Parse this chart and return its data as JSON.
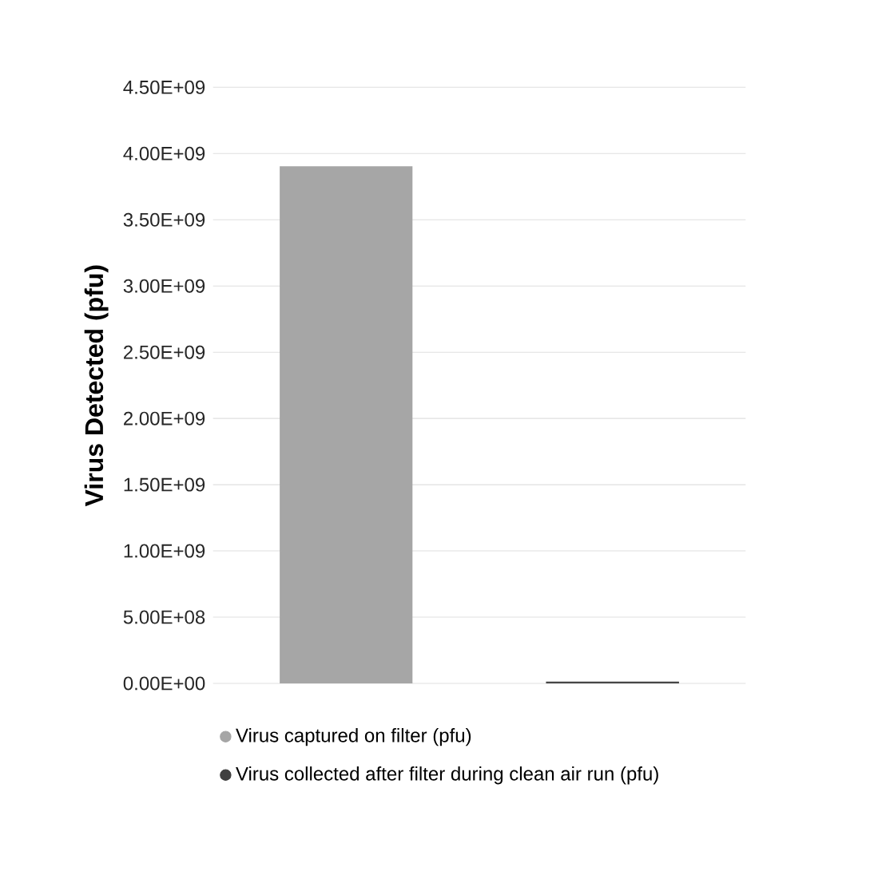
{
  "chart_data": {
    "type": "bar",
    "ylabel": "**Virus Detected (pfu)**",
    "categories": [
      null,
      null
    ],
    "series": [
      {
        "name": "Virus captured on filter (pfu)",
        "color": "#a6a6a6",
        "values": [
          3900000000,
          null
        ]
      },
      {
        "name": "Virus collected after filter during clean air run (pfu)",
        "color": "#404040",
        "values": [
          null,
          10000000
        ]
      }
    ],
    "ylim": [
      0,
      4500000000
    ],
    "yticks": [
      {
        "value": 0,
        "label": "0.00E+00"
      },
      {
        "value": 500000000,
        "label": "5.00E+08"
      },
      {
        "value": 1000000000,
        "label": "1.00E+09"
      },
      {
        "value": 1500000000,
        "label": "1.50E+09"
      },
      {
        "value": 2000000000,
        "label": "2.00E+09"
      },
      {
        "value": 2500000000,
        "label": "2.50E+09"
      },
      {
        "value": 3000000000,
        "label": "3.00E+09"
      },
      {
        "value": 3500000000,
        "label": "3.50E+09"
      },
      {
        "value": 4000000000,
        "label": "4.00E+09"
      },
      {
        "value": 4500000000,
        "label": "4.50E+09"
      }
    ],
    "grid": "y",
    "legend": "bottom"
  }
}
